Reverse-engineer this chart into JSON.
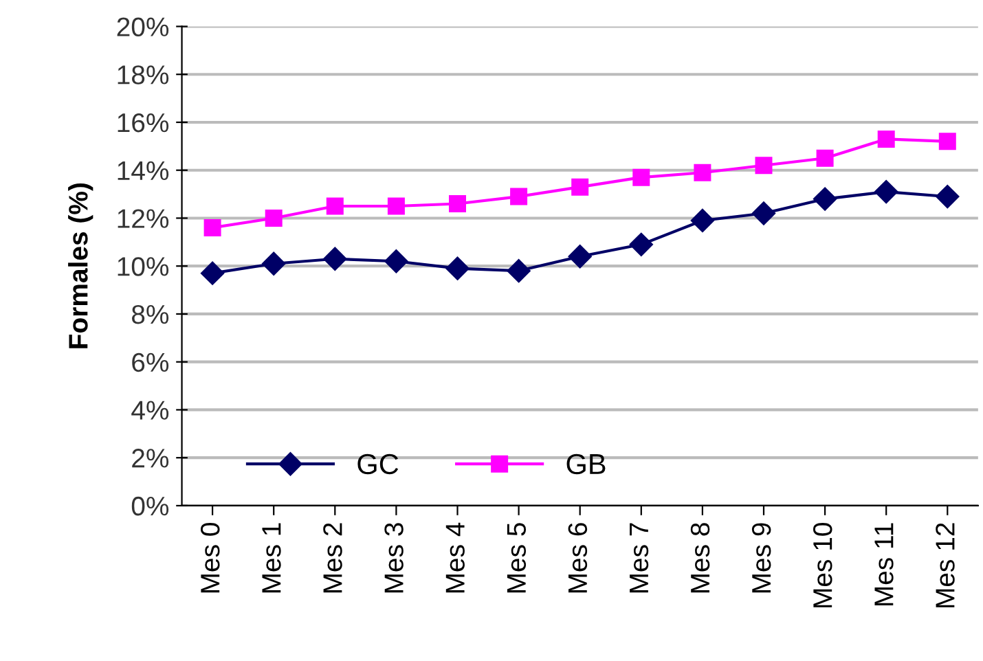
{
  "chart_data": {
    "type": "line",
    "ylabel": "Formales (%)",
    "categories": [
      "Mes 0",
      "Mes 1",
      "Mes 2",
      "Mes 3",
      "Mes 4",
      "Mes 5",
      "Mes 6",
      "Mes 7",
      "Mes 8",
      "Mes 9",
      "Mes 10",
      "Mes 11",
      "Mes 12"
    ],
    "series": [
      {
        "name": "GC",
        "color": "#000066",
        "marker": "diamond",
        "values": [
          9.7,
          10.1,
          10.3,
          10.2,
          9.9,
          9.8,
          10.4,
          10.9,
          11.9,
          12.2,
          12.8,
          13.1,
          12.9
        ]
      },
      {
        "name": "GB",
        "color": "#ff00ff",
        "marker": "square",
        "values": [
          11.6,
          12.0,
          12.5,
          12.5,
          12.6,
          12.9,
          13.3,
          13.7,
          13.9,
          14.2,
          14.5,
          15.3,
          15.2
        ]
      }
    ],
    "ylim": [
      0,
      20
    ],
    "yticks": [
      {
        "value": 0,
        "label": "0%"
      },
      {
        "value": 2,
        "label": "2%"
      },
      {
        "value": 4,
        "label": "4%"
      },
      {
        "value": 6,
        "label": "6%"
      },
      {
        "value": 8,
        "label": "8%"
      },
      {
        "value": 10,
        "label": "10%"
      },
      {
        "value": 12,
        "label": "12%"
      },
      {
        "value": 14,
        "label": "14%"
      },
      {
        "value": 16,
        "label": "16%"
      },
      {
        "value": 18,
        "label": "18%"
      },
      {
        "value": 20,
        "label": "20%"
      }
    ],
    "grid": "y",
    "legend": "bottom left"
  }
}
